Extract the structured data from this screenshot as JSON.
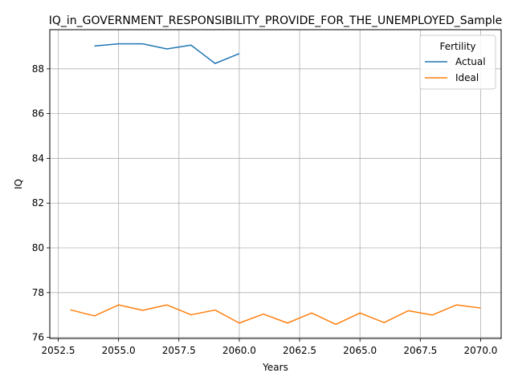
{
  "chart_data": {
    "type": "line",
    "title": "IQ_in_GOVERNMENT_RESPONSIBILITY_PROVIDE_FOR_THE_UNEMPLOYED_Sample",
    "xlabel": "Years",
    "ylabel": "IQ",
    "xlim": [
      2052.15,
      2070.85
    ],
    "ylim": [
      75.95,
      89.75
    ],
    "xticks": [
      2052.5,
      2055.0,
      2057.5,
      2060.0,
      2062.5,
      2065.0,
      2067.5,
      2070.0
    ],
    "xtick_labels": [
      "2052.5",
      "2055.0",
      "2057.5",
      "2060.0",
      "2062.5",
      "2065.0",
      "2067.5",
      "2070.0"
    ],
    "yticks": [
      76,
      78,
      80,
      82,
      84,
      86,
      88
    ],
    "ytick_labels": [
      "76",
      "78",
      "80",
      "82",
      "84",
      "86",
      "88"
    ],
    "grid": true,
    "legend": {
      "title": "Fertility",
      "placement": "top-right"
    },
    "series": [
      {
        "name": "Actual",
        "color": "#1f77b4",
        "x": [
          2054,
          2055,
          2056,
          2057,
          2058,
          2059,
          2060
        ],
        "y": [
          89.02,
          89.12,
          89.12,
          88.89,
          89.06,
          88.24,
          88.68
        ]
      },
      {
        "name": "Ideal",
        "color": "#ff7f0e",
        "x": [
          2053,
          2054,
          2055,
          2056,
          2057,
          2058,
          2059,
          2060,
          2061,
          2062,
          2063,
          2064,
          2065,
          2066,
          2067,
          2068,
          2069,
          2070
        ],
        "y": [
          77.23,
          76.96,
          77.45,
          77.21,
          77.45,
          77.01,
          77.22,
          76.64,
          77.04,
          76.64,
          77.09,
          76.58,
          77.09,
          76.66,
          77.19,
          77.0,
          77.45,
          77.31
        ]
      }
    ]
  }
}
